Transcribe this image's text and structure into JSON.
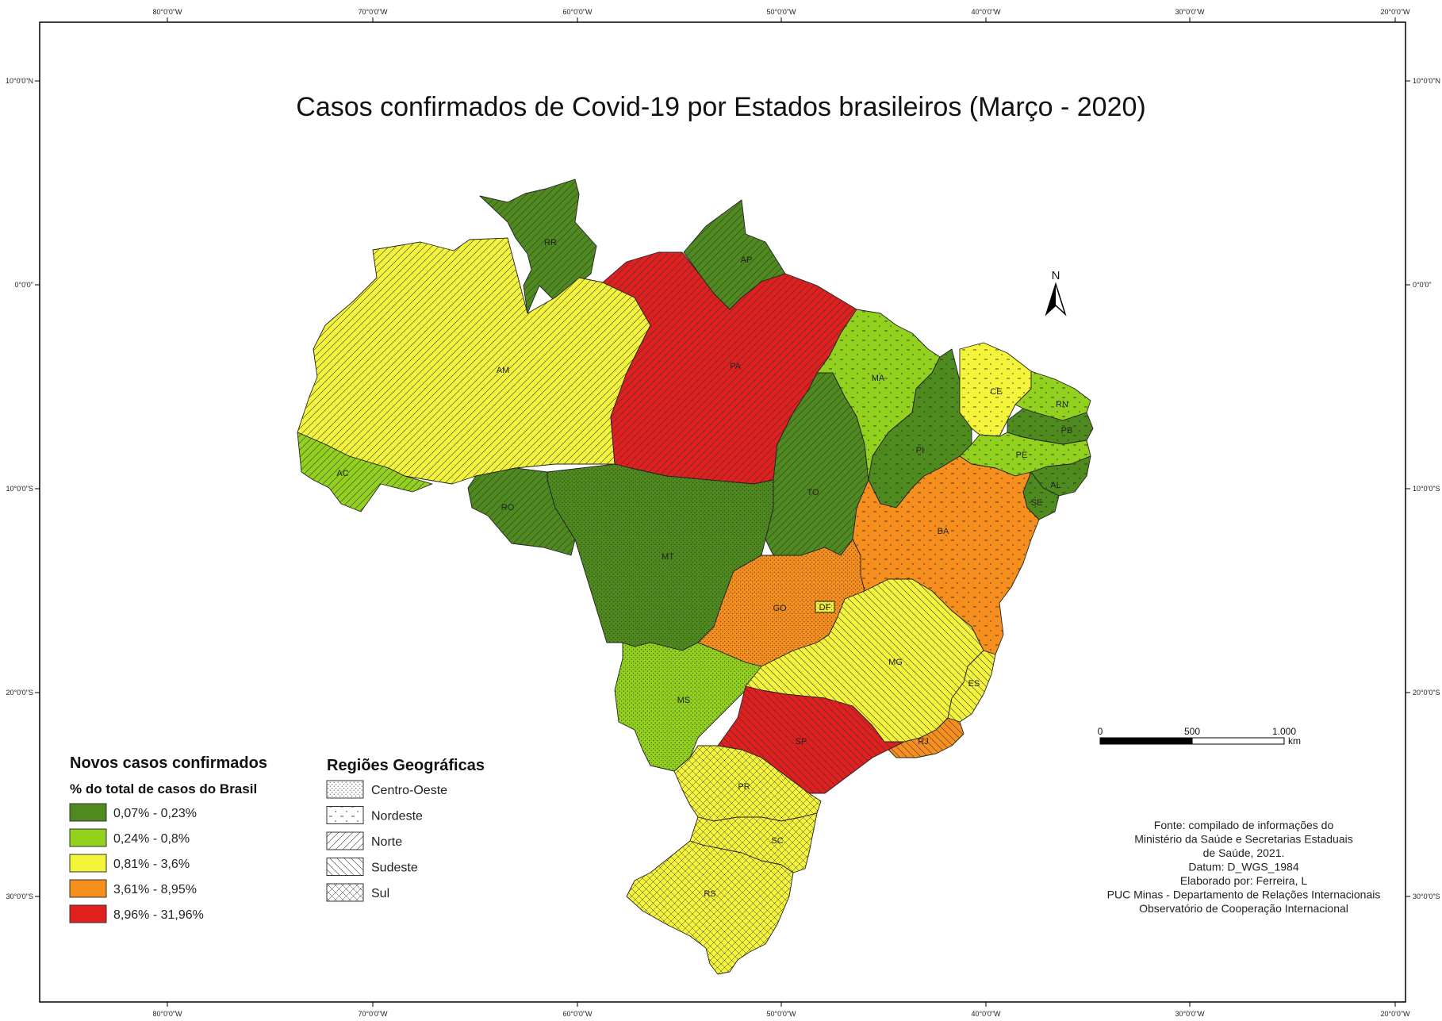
{
  "title": "Casos confirmados de Covid-19 por Estados brasileiros (Março - 2020)",
  "colors": {
    "c1": "#4f8a1f",
    "c2": "#93d11f",
    "c3": "#f4f43a",
    "c4": "#f78f1f",
    "c5": "#e01f1f"
  },
  "grid": {
    "top_labels": [
      "80°0'0\"W",
      "70°0'0\"W",
      "60°0'0\"W",
      "50°0'0\"W",
      "40°0'0\"W",
      "30°0'0\"W",
      "20°0'0\"W"
    ],
    "side_labels": [
      "10°0'0\"N",
      "0°0'0\"",
      "10°0'0\"S",
      "20°0'0\"S",
      "30°0'0\"S"
    ]
  },
  "states": {
    "RR": {
      "label": "RR",
      "class": "c1",
      "region": "norte"
    },
    "AP": {
      "label": "AP",
      "class": "c1",
      "region": "norte"
    },
    "AM": {
      "label": "AM",
      "class": "c3",
      "region": "norte"
    },
    "PA": {
      "label": "PA",
      "class": "c5",
      "region": "norte"
    },
    "AC": {
      "label": "AC",
      "class": "c2",
      "region": "norte"
    },
    "RO": {
      "label": "RO",
      "class": "c1",
      "region": "norte"
    },
    "TO": {
      "label": "TO",
      "class": "c1",
      "region": "norte"
    },
    "MA": {
      "label": "MA",
      "class": "c2",
      "region": "nordeste"
    },
    "PI": {
      "label": "PI",
      "class": "c1",
      "region": "nordeste"
    },
    "CE": {
      "label": "CE",
      "class": "c3",
      "region": "nordeste"
    },
    "RN": {
      "label": "RN",
      "class": "c2",
      "region": "nordeste"
    },
    "PB": {
      "label": "PB",
      "class": "c1",
      "region": "nordeste"
    },
    "PE": {
      "label": "PE",
      "class": "c2",
      "region": "nordeste"
    },
    "AL": {
      "label": "AL",
      "class": "c1",
      "region": "nordeste"
    },
    "SE": {
      "label": "SE",
      "class": "c1",
      "region": "nordeste"
    },
    "BA": {
      "label": "BA",
      "class": "c4",
      "region": "nordeste"
    },
    "MT": {
      "label": "MT",
      "class": "c1",
      "region": "centro-oeste"
    },
    "GO": {
      "label": "GO",
      "class": "c4",
      "region": "centro-oeste"
    },
    "DF": {
      "label": "DF",
      "class": "c3",
      "region": "centro-oeste"
    },
    "MS": {
      "label": "MS",
      "class": "c2",
      "region": "centro-oeste"
    },
    "MG": {
      "label": "MG",
      "class": "c3",
      "region": "sudeste"
    },
    "ES": {
      "label": "ES",
      "class": "c3",
      "region": "sudeste"
    },
    "RJ": {
      "label": "RJ",
      "class": "c4",
      "region": "sudeste"
    },
    "SP": {
      "label": "SP",
      "class": "c5",
      "region": "sudeste"
    },
    "PR": {
      "label": "PR",
      "class": "c3",
      "region": "sul"
    },
    "SC": {
      "label": "SC",
      "class": "c3",
      "region": "sul"
    },
    "RS": {
      "label": "RS",
      "class": "c3",
      "region": "sul"
    }
  },
  "legend_cases": {
    "title": "Novos casos confirmados",
    "subtitle": "% do total de casos do Brasil",
    "items": [
      {
        "label": "0,07% - 0,23%",
        "class": "c1"
      },
      {
        "label": "0,24% - 0,8%",
        "class": "c2"
      },
      {
        "label": "0,81% - 3,6%",
        "class": "c3"
      },
      {
        "label": "3,61% - 8,95%",
        "class": "c4"
      },
      {
        "label": "8,96% - 31,96%",
        "class": "c5"
      }
    ]
  },
  "legend_regions": {
    "title": "Regiões Geográficas",
    "items": [
      {
        "label": "Centro-Oeste",
        "pattern": "centro-oeste"
      },
      {
        "label": "Nordeste",
        "pattern": "nordeste"
      },
      {
        "label": "Norte",
        "pattern": "norte"
      },
      {
        "label": "Sudeste",
        "pattern": "sudeste"
      },
      {
        "label": "Sul",
        "pattern": "sul"
      }
    ]
  },
  "north_arrow": {
    "label": "N"
  },
  "scale_bar": {
    "ticks": [
      "0",
      "500",
      "1.000"
    ],
    "unit": "km"
  },
  "source": {
    "lines": [
      "Fonte: compilado de informações do",
      "Ministério da Saúde e Secretarias Estaduais",
      "de Saúde, 2021.",
      "Datum: D_WGS_1984",
      "Elaborado por: Ferreira, L",
      "PUC Minas - Departamento de Relações Internacionais",
      "Observatório de Cooperação Internacional"
    ]
  }
}
